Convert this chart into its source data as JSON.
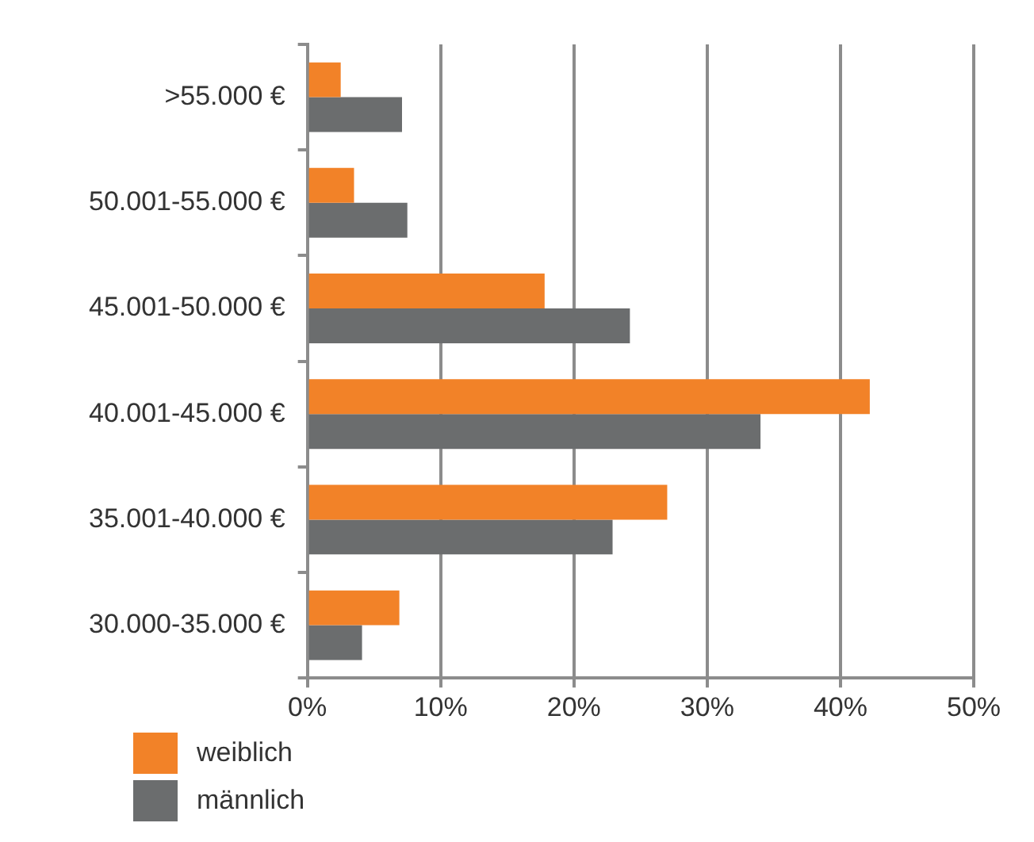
{
  "chart_data": {
    "type": "bar",
    "orientation": "horizontal",
    "categories": [
      ">55.000 €",
      "50.001-55.000 €",
      "45.001-50.000 €",
      "40.001-45.000 €",
      "35.001-40.000 €",
      "30.000-35.000 €"
    ],
    "series": [
      {
        "name": "weiblich",
        "color": "#f28228",
        "values": [
          2.5,
          3.5,
          17.8,
          42.2,
          27.0,
          6.9
        ]
      },
      {
        "name": "männlich",
        "color": "#6b6d6e",
        "values": [
          7.1,
          7.5,
          24.2,
          34.0,
          22.9,
          4.1
        ]
      }
    ],
    "xlim": [
      0,
      50
    ],
    "xticks": [
      {
        "value": 0,
        "label": "0%"
      },
      {
        "value": 10,
        "label": "10%"
      },
      {
        "value": 20,
        "label": "20%"
      },
      {
        "value": 30,
        "label": "30%"
      },
      {
        "value": 40,
        "label": "40%"
      },
      {
        "value": 50,
        "label": "50%"
      }
    ],
    "grid": "x",
    "legend": "bottom left"
  }
}
